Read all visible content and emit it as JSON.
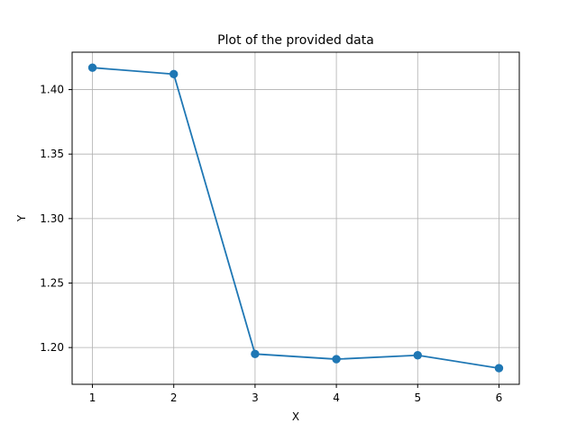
{
  "chart_data": {
    "type": "line",
    "title": "Plot of the provided data",
    "xlabel": "X",
    "ylabel": "Y",
    "xlim": [
      0.75,
      6.25
    ],
    "ylim": [
      1.1715,
      1.429
    ],
    "grid": true,
    "x_ticks": [
      1,
      2,
      3,
      4,
      5,
      6
    ],
    "x_tick_labels": [
      "1",
      "2",
      "3",
      "4",
      "5",
      "6"
    ],
    "y_ticks": [
      1.2,
      1.25,
      1.3,
      1.35,
      1.4
    ],
    "y_tick_labels": [
      "1.20",
      "1.25",
      "1.30",
      "1.35",
      "1.40"
    ],
    "series": [
      {
        "x": [
          1,
          2,
          3,
          4,
          5,
          6
        ],
        "y": [
          1.417,
          1.412,
          1.195,
          1.191,
          1.194,
          1.184
        ],
        "color": "#1f77b4",
        "marker": "circle"
      }
    ]
  }
}
